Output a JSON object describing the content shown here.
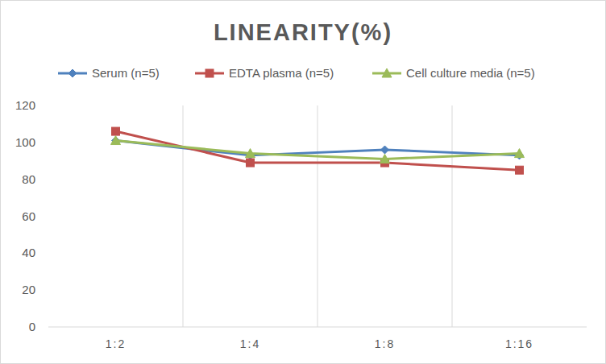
{
  "chart_data": {
    "type": "line",
    "title": "LINEARITY(%)",
    "categories": [
      "1:2",
      "1:4",
      "1:8",
      "1:16"
    ],
    "series": [
      {
        "name": "Serum (n=5)",
        "color": "#4f81bd",
        "marker": "diamond",
        "values": [
          101,
          93,
          96,
          93
        ]
      },
      {
        "name": "EDTA plasma (n=5)",
        "color": "#c0504d",
        "marker": "square",
        "values": [
          106,
          89,
          89,
          85
        ]
      },
      {
        "name": "Cell culture media (n=5)",
        "color": "#9bbb59",
        "marker": "triangle",
        "values": [
          101,
          94,
          91,
          94
        ]
      }
    ],
    "ylim": [
      0,
      120
    ],
    "yticks": [
      0,
      20,
      40,
      60,
      80,
      100,
      120
    ],
    "grid": true,
    "legend": "top"
  }
}
